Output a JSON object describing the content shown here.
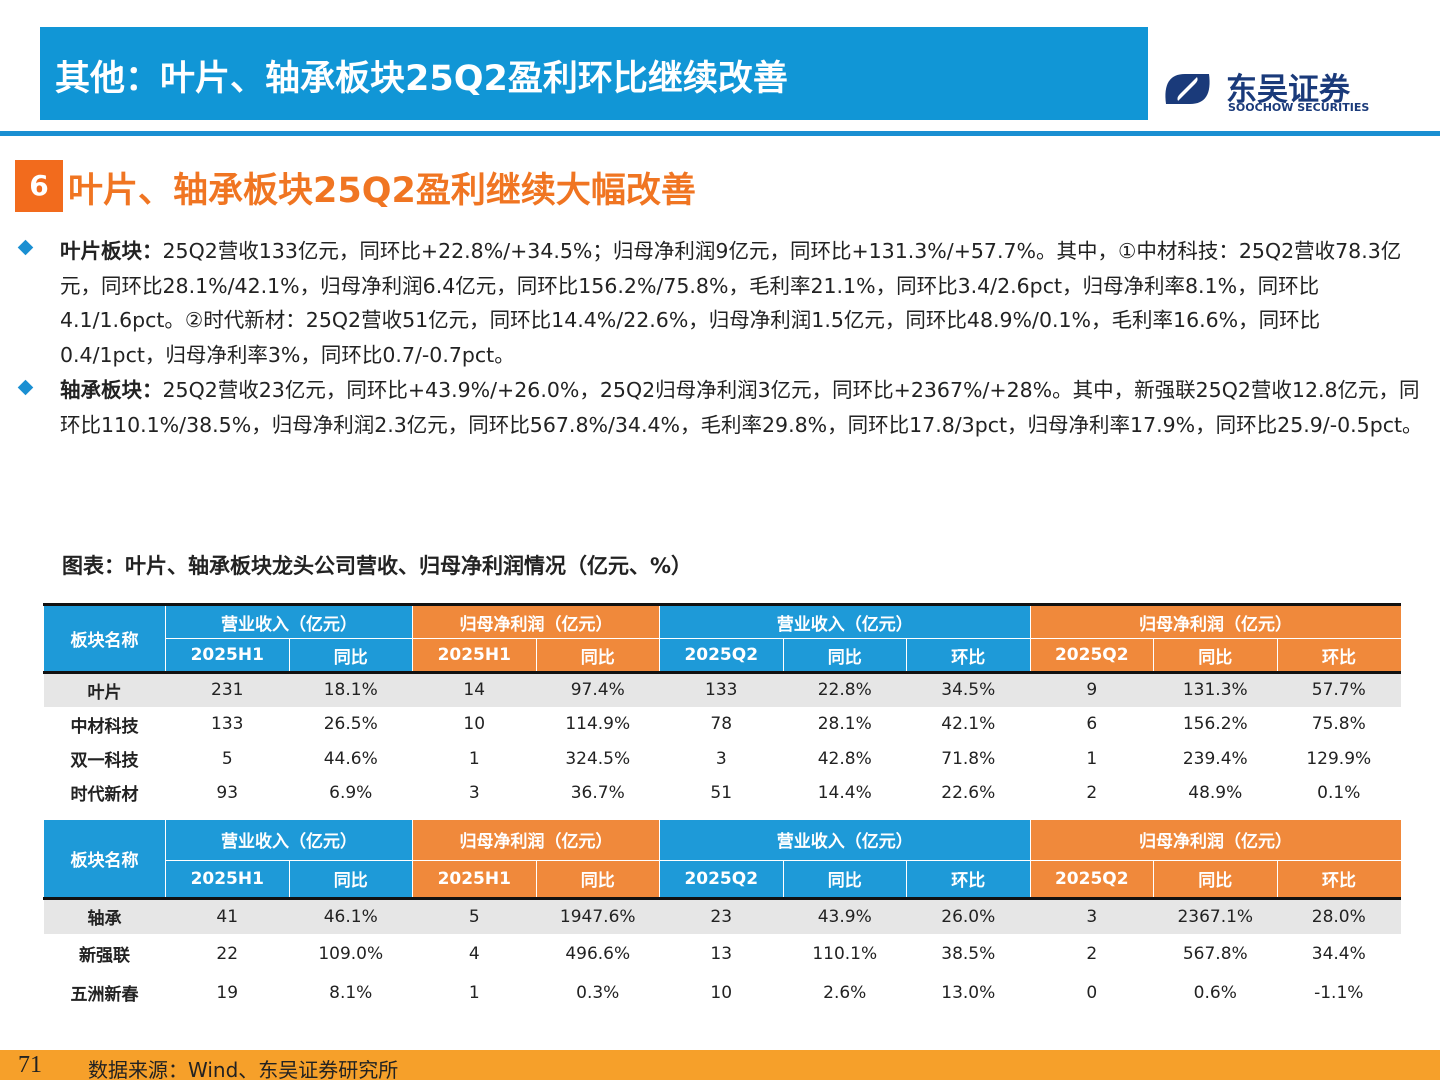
{
  "header": {
    "title": "其他：叶片、轴承板块25Q2盈利环比继续改善",
    "logo_cn": "东吴证券",
    "logo_en": "SOOCHOW SECURITIES"
  },
  "section": {
    "number": "6",
    "title": "叶片、轴承板块25Q2盈利继续大幅改善"
  },
  "bullets": [
    {
      "label": "叶片板块：",
      "text": "25Q2营收133亿元，同环比+22.8%/+34.5%；归母净利润9亿元，同环比+131.3%/+57.7%。其中，①中材科技：25Q2营收78.3亿元，同环比28.1%/42.1%，归母净利润6.4亿元，同环比156.2%/75.8%，毛利率21.1%，同环比3.4/2.6pct，归母净利率8.1%，同环比4.1/1.6pct。②时代新材：25Q2营收51亿元，同环比14.4%/22.6%，归母净利润1.5亿元，同环比48.9%/0.1%，毛利率16.6%，同环比0.4/1pct，归母净利率3%，同环比0.7/-0.7pct。"
    },
    {
      "label": "轴承板块：",
      "text": "25Q2营收23亿元，同环比+43.9%/+26.0%，25Q2归母净利润3亿元，同环比+2367%/+28%。其中，新强联25Q2营收12.8亿元，同环比110.1%/38.5%，归母净利润2.3亿元，同环比567.8%/34.4%，毛利率29.8%，同环比17.8/3pct，归母净利率17.9%，同环比25.9/-0.5pct。"
    }
  ],
  "figure_title": "图表：叶片、轴承板块龙头公司营收、归母净利润情况（亿元、%）",
  "tables": [
    {
      "group_headers": [
        "板块名称",
        "营业收入（亿元）",
        "归母净利润（亿元）",
        "营业收入（亿元）",
        "归母净利润（亿元）"
      ],
      "sub_headers": [
        "2025H1",
        "同比",
        "2025H1",
        "同比",
        "2025Q2",
        "同比",
        "环比",
        "2025Q2",
        "同比",
        "环比"
      ],
      "rows": [
        [
          "叶片",
          "231",
          "18.1%",
          "14",
          "97.4%",
          "133",
          "22.8%",
          "34.5%",
          "9",
          "131.3%",
          "57.7%"
        ],
        [
          "中材科技",
          "133",
          "26.5%",
          "10",
          "114.9%",
          "78",
          "28.1%",
          "42.1%",
          "6",
          "156.2%",
          "75.8%"
        ],
        [
          "双一科技",
          "5",
          "44.6%",
          "1",
          "324.5%",
          "3",
          "42.8%",
          "71.8%",
          "1",
          "239.4%",
          "129.9%"
        ],
        [
          "时代新材",
          "93",
          "6.9%",
          "3",
          "36.7%",
          "51",
          "14.4%",
          "22.6%",
          "2",
          "48.9%",
          "0.1%"
        ]
      ]
    },
    {
      "group_headers": [
        "板块名称",
        "营业收入（亿元）",
        "归母净利润（亿元）",
        "营业收入（亿元）",
        "归母净利润（亿元）"
      ],
      "sub_headers": [
        "2025H1",
        "同比",
        "2025H1",
        "同比",
        "2025Q2",
        "同比",
        "环比",
        "2025Q2",
        "同比",
        "环比"
      ],
      "rows": [
        [
          "轴承",
          "41",
          "46.1%",
          "5",
          "1947.6%",
          "23",
          "43.9%",
          "26.0%",
          "3",
          "2367.1%",
          "28.0%"
        ],
        [
          "新强联",
          "22",
          "109.0%",
          "4",
          "496.6%",
          "13",
          "110.1%",
          "38.5%",
          "2",
          "567.8%",
          "34.4%"
        ],
        [
          "五洲新春",
          "19",
          "8.1%",
          "1",
          "0.3%",
          "10",
          "2.6%",
          "13.0%",
          "0",
          "0.6%",
          "-1.1%"
        ]
      ]
    }
  ],
  "footer": {
    "page": "71",
    "source": "数据来源：Wind、东吴证券研究所"
  }
}
